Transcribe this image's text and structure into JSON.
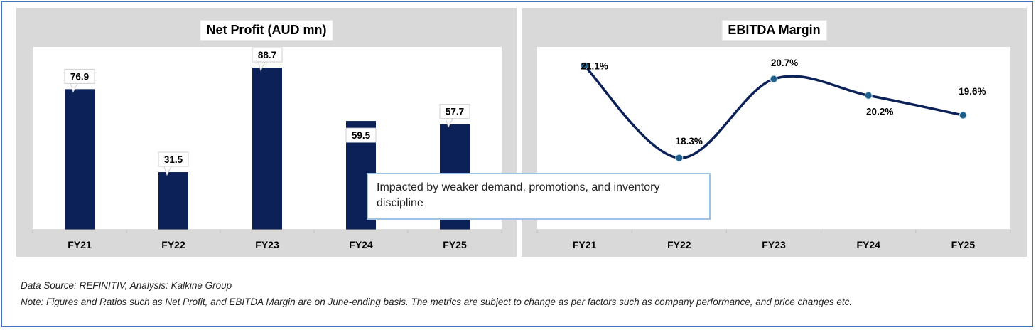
{
  "chart_data": [
    {
      "type": "bar",
      "title": "Net Profit (AUD mn)",
      "categories": [
        "FY21",
        "FY22",
        "FY23",
        "FY24",
        "FY25"
      ],
      "values": [
        76.9,
        31.5,
        88.7,
        59.5,
        57.7
      ],
      "value_labels": [
        "76.9",
        "31.5",
        "88.7",
        "59.5",
        "57.7"
      ],
      "ylim": [
        0,
        100
      ],
      "bar_color": "#0c2157",
      "grid": false
    },
    {
      "type": "line",
      "title": "EBITDA Margin",
      "categories": [
        "FY21",
        "FY22",
        "FY23",
        "FY24",
        "FY25"
      ],
      "values": [
        21.1,
        18.3,
        20.7,
        20.2,
        19.6
      ],
      "value_labels": [
        "21.1%",
        "18.3%",
        "20.7%",
        "20.2%",
        "19.6%"
      ],
      "ylim": [
        18.0,
        21.2
      ],
      "line_color": "#0c2157",
      "marker_color": "#1f5f8b",
      "smooth": true,
      "grid": false
    }
  ],
  "callout": "Impacted by weaker demand, promotions, and inventory discipline",
  "footer": {
    "source": "Data Source: REFINITIV, Analysis: Kalkine Group",
    "note": "Note: Figures and Ratios such as Net Profit, and EBITDA Margin are on  June-ending basis. The metrics are subject to change as per factors such as company performance, and price changes etc."
  }
}
